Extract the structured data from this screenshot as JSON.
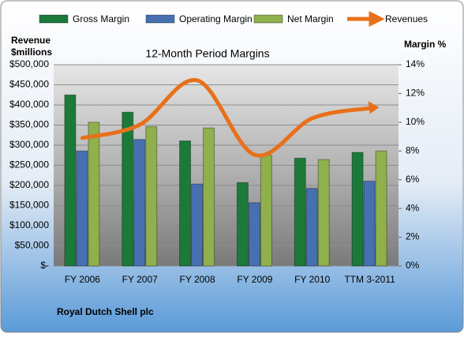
{
  "chart_data": {
    "type": "bar-line",
    "title": "12-Month Period Margins",
    "ylabel_lines": [
      "Revenue",
      "$millions"
    ],
    "y2label": "Margin %",
    "source": "Royal Dutch Shell plc",
    "categories": [
      "FY 2006",
      "FY 2007",
      "FY 2008",
      "FY 2009",
      "FY 2010",
      "TTM 3-2011"
    ],
    "series": [
      {
        "name": "Gross Margin",
        "color": "#1b7a3a",
        "type": "bar",
        "axis": "y2",
        "values": [
          11.9,
          10.7,
          8.7,
          5.8,
          7.5,
          7.9
        ]
      },
      {
        "name": "Operating Margin",
        "color": "#4670b0",
        "type": "bar",
        "axis": "y2",
        "values": [
          8.0,
          8.8,
          5.7,
          4.4,
          5.4,
          5.9
        ]
      },
      {
        "name": "Net Margin",
        "color": "#8fb04c",
        "type": "bar",
        "axis": "y2",
        "values": [
          10.0,
          9.7,
          9.6,
          7.7,
          7.4,
          8.0
        ]
      },
      {
        "name": "Revenues",
        "color": "#e8701a",
        "type": "line",
        "axis": "y",
        "values": [
          318000,
          351000,
          461000,
          276000,
          367000,
          392000
        ]
      }
    ],
    "ylim": [
      0,
      500000
    ],
    "yticks": [
      {
        "value": 0,
        "label": "$-"
      },
      {
        "value": 50000,
        "label": "$50,000"
      },
      {
        "value": 100000,
        "label": "$100,000"
      },
      {
        "value": 150000,
        "label": "$150,000"
      },
      {
        "value": 200000,
        "label": "$200,000"
      },
      {
        "value": 250000,
        "label": "$250,000"
      },
      {
        "value": 300000,
        "label": "$300,000"
      },
      {
        "value": 350000,
        "label": "$350,000"
      },
      {
        "value": 400000,
        "label": "$400,000"
      },
      {
        "value": 450000,
        "label": "$450,000"
      },
      {
        "value": 500000,
        "label": "$500,000"
      }
    ],
    "y2lim": [
      0,
      14
    ],
    "y2ticks": [
      {
        "value": 0,
        "label": "0%"
      },
      {
        "value": 2,
        "label": "2%"
      },
      {
        "value": 4,
        "label": "4%"
      },
      {
        "value": 6,
        "label": "6%"
      },
      {
        "value": 8,
        "label": "8%"
      },
      {
        "value": 10,
        "label": "10%"
      },
      {
        "value": 12,
        "label": "12%"
      },
      {
        "value": 14,
        "label": "14%"
      }
    ],
    "grid": true
  }
}
